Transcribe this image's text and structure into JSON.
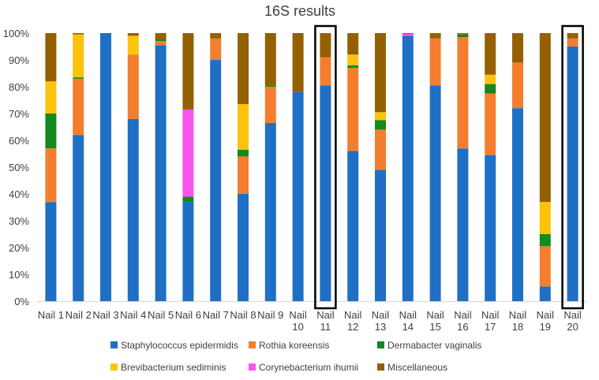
{
  "chart_data": {
    "type": "bar",
    "stacked": true,
    "title": "16S results",
    "xlabel": "",
    "ylabel": "",
    "ylim": [
      0,
      100
    ],
    "y_ticks": [
      "0%",
      "10%",
      "20%",
      "30%",
      "40%",
      "50%",
      "60%",
      "70%",
      "80%",
      "90%",
      "100%"
    ],
    "categories": [
      [
        "Nail 1"
      ],
      [
        "Nail 2"
      ],
      [
        "Nail 3"
      ],
      [
        "Nail 4"
      ],
      [
        "Nail 5"
      ],
      [
        "Nail 6"
      ],
      [
        "Nail 7"
      ],
      [
        "Nail 8"
      ],
      [
        "Nail 9"
      ],
      [
        "Nail",
        "10"
      ],
      [
        "Nail",
        "11"
      ],
      [
        "Nail",
        "12"
      ],
      [
        "Nail",
        "13"
      ],
      [
        "Nail",
        "14"
      ],
      [
        "Nail",
        "15"
      ],
      [
        "Nail",
        "16"
      ],
      [
        "Nail",
        "17"
      ],
      [
        "Nail",
        "18"
      ],
      [
        "Nail",
        "19"
      ],
      [
        "Nail",
        "20"
      ]
    ],
    "highlighted": [
      "Nail 11",
      "Nail 20"
    ],
    "legend_position": "bottom",
    "grid": false,
    "series": [
      {
        "name": "Staphylococcus epidermidis",
        "color": "#1f6fc5",
        "values": [
          37,
          62,
          100,
          68,
          95.5,
          37,
          90,
          40,
          66.5,
          78,
          80.5,
          56,
          49,
          99,
          80.5,
          57,
          54.5,
          72,
          5.5,
          95
        ]
      },
      {
        "name": "Rothia koreensis",
        "color": "#f47e2e",
        "values": [
          20,
          21,
          0,
          24,
          1.5,
          0,
          8,
          14,
          13.5,
          0,
          10.5,
          31,
          15,
          0,
          17.5,
          41.5,
          23,
          17,
          15,
          3
        ]
      },
      {
        "name": "Dermabacter vaginalis",
        "color": "#13891e",
        "values": [
          13,
          0.5,
          0,
          0,
          0.5,
          2,
          0,
          2.5,
          0.5,
          0,
          0,
          1,
          3.5,
          0,
          0,
          1,
          3.5,
          0,
          4.5,
          0
        ]
      },
      {
        "name": "Brevibacterium sediminis",
        "color": "#fcc30c",
        "values": [
          12,
          16,
          0,
          7,
          0,
          0,
          0,
          17,
          0,
          0,
          0,
          4,
          3,
          0,
          0,
          0,
          3.5,
          0,
          12,
          0
        ]
      },
      {
        "name": "Corynebacterium ihumii",
        "color": "#fb52f2",
        "values": [
          0,
          0,
          0,
          0,
          0,
          32.5,
          0,
          0,
          0,
          0,
          0,
          0,
          0,
          0.7,
          0,
          0,
          0,
          0,
          0,
          0
        ]
      },
      {
        "name": "Miscellaneous",
        "color": "#946000",
        "values": [
          18,
          0.5,
          0,
          1,
          2.5,
          28.5,
          2,
          26.5,
          19.5,
          22,
          9,
          8,
          29.5,
          0.3,
          2,
          0.5,
          15.5,
          11,
          63,
          2
        ]
      }
    ]
  }
}
